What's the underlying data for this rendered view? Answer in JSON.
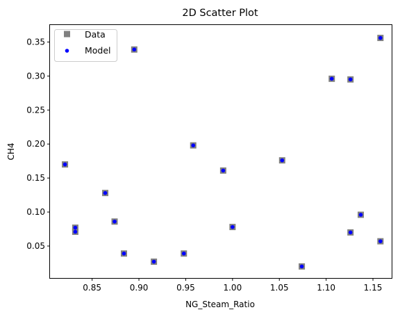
{
  "chart_data": {
    "type": "scatter",
    "title": "2D Scatter Plot",
    "xlabel": "NG_Steam_Ratio",
    "ylabel": "CH4",
    "xlim": [
      0.805,
      1.17
    ],
    "ylim": [
      0.003,
      0.375
    ],
    "x_ticks": [
      0.85,
      0.9,
      0.95,
      1.0,
      1.05,
      1.1,
      1.15
    ],
    "x_tick_labels": [
      "0.85",
      "0.90",
      "0.95",
      "1.00",
      "1.05",
      "1.10",
      "1.15"
    ],
    "y_ticks": [
      0.05,
      0.1,
      0.15,
      0.2,
      0.25,
      0.3,
      0.35
    ],
    "y_tick_labels": [
      "0.05",
      "0.10",
      "0.15",
      "0.20",
      "0.25",
      "0.30",
      "0.35"
    ],
    "grid": false,
    "legend_placement": "top-left",
    "series": [
      {
        "name": "Data",
        "marker": "square",
        "color": "#808080",
        "points": [
          [
            0.821,
            0.17
          ],
          [
            0.832,
            0.077
          ],
          [
            0.832,
            0.071
          ],
          [
            0.864,
            0.128
          ],
          [
            0.874,
            0.086
          ],
          [
            0.884,
            0.039
          ],
          [
            0.895,
            0.339
          ],
          [
            0.916,
            0.027
          ],
          [
            0.948,
            0.039
          ],
          [
            0.958,
            0.198
          ],
          [
            0.99,
            0.161
          ],
          [
            1.0,
            0.078
          ],
          [
            1.053,
            0.176
          ],
          [
            1.074,
            0.02
          ],
          [
            1.106,
            0.296
          ],
          [
            1.126,
            0.295
          ],
          [
            1.126,
            0.07
          ],
          [
            1.137,
            0.096
          ],
          [
            1.158,
            0.356
          ],
          [
            1.158,
            0.057
          ]
        ]
      },
      {
        "name": "Model",
        "marker": "circle",
        "color": "#0000ff",
        "points": [
          [
            0.821,
            0.17
          ],
          [
            0.832,
            0.077
          ],
          [
            0.832,
            0.071
          ],
          [
            0.864,
            0.128
          ],
          [
            0.874,
            0.086
          ],
          [
            0.884,
            0.039
          ],
          [
            0.895,
            0.339
          ],
          [
            0.916,
            0.027
          ],
          [
            0.948,
            0.039
          ],
          [
            0.958,
            0.198
          ],
          [
            0.99,
            0.161
          ],
          [
            1.0,
            0.078
          ],
          [
            1.053,
            0.176
          ],
          [
            1.074,
            0.02
          ],
          [
            1.106,
            0.296
          ],
          [
            1.126,
            0.295
          ],
          [
            1.126,
            0.07
          ],
          [
            1.137,
            0.096
          ],
          [
            1.158,
            0.356
          ],
          [
            1.158,
            0.057
          ]
        ]
      }
    ]
  }
}
